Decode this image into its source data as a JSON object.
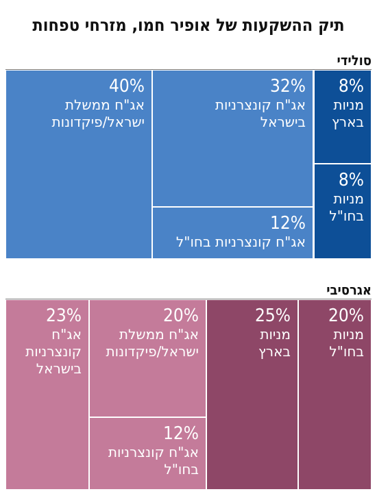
{
  "title": "תיק ההשקעות של אופיר חמו, מזרחי טפחות",
  "chart_data": [
    {
      "type": "treemap",
      "title": "סולידי",
      "colors": {
        "light": "#4a83c7",
        "dark": "#0d4f97"
      },
      "items": [
        {
          "value": 40,
          "label": "40%",
          "name": "אג\"ח ממשלת ישראל/פיקדונות",
          "lines": [
            "אג\"ח ממשלת",
            "ישראל/פיקדונות"
          ],
          "shade": "light"
        },
        {
          "value": 32,
          "label": "32%",
          "name": "אג\"ח קונצרניות בישראל",
          "lines": [
            "אג\"ח קונצרניות",
            "בישראל"
          ],
          "shade": "light"
        },
        {
          "value": 12,
          "label": "12%",
          "name": "אג\"ח קונצרניות בחו\"ל",
          "lines": [
            "אג\"ח קונצרניות בחו\"ל"
          ],
          "shade": "light"
        },
        {
          "value": 8,
          "label": "8%",
          "name": "מניות בארץ",
          "lines": [
            "מניות",
            "בארץ"
          ],
          "shade": "dark"
        },
        {
          "value": 8,
          "label": "8%",
          "name": "מניות בחו\"ל",
          "lines": [
            "מניות",
            "בחו\"ל"
          ],
          "shade": "dark"
        }
      ]
    },
    {
      "type": "treemap",
      "title": "אגרסיבי",
      "colors": {
        "light": "#c47b9a",
        "dark": "#8e4767"
      },
      "items": [
        {
          "value": 20,
          "label": "20%",
          "name": "מניות בחו\"ל",
          "lines": [
            "מניות",
            "בחו\"ל"
          ],
          "shade": "dark"
        },
        {
          "value": 25,
          "label": "25%",
          "name": "מניות בארץ",
          "lines": [
            "מניות",
            "בארץ"
          ],
          "shade": "dark"
        },
        {
          "value": 20,
          "label": "20%",
          "name": "אג\"ח ממשלת ישראל/פיקדונות",
          "lines": [
            "אג\"ח ממשלת",
            "ישראל/פיקדונות"
          ],
          "shade": "light"
        },
        {
          "value": 12,
          "label": "12%",
          "name": "אג\"ח קונצרניות בחו\"ל",
          "lines": [
            "אג\"ח קונצרניות",
            "בחו\"ל"
          ],
          "shade": "light"
        },
        {
          "value": 23,
          "label": "23%",
          "name": "אג\"ח קונצרניות בישראל",
          "lines": [
            "אג\"ח",
            "קונצרניות",
            "בישראל"
          ],
          "shade": "light"
        }
      ]
    }
  ]
}
